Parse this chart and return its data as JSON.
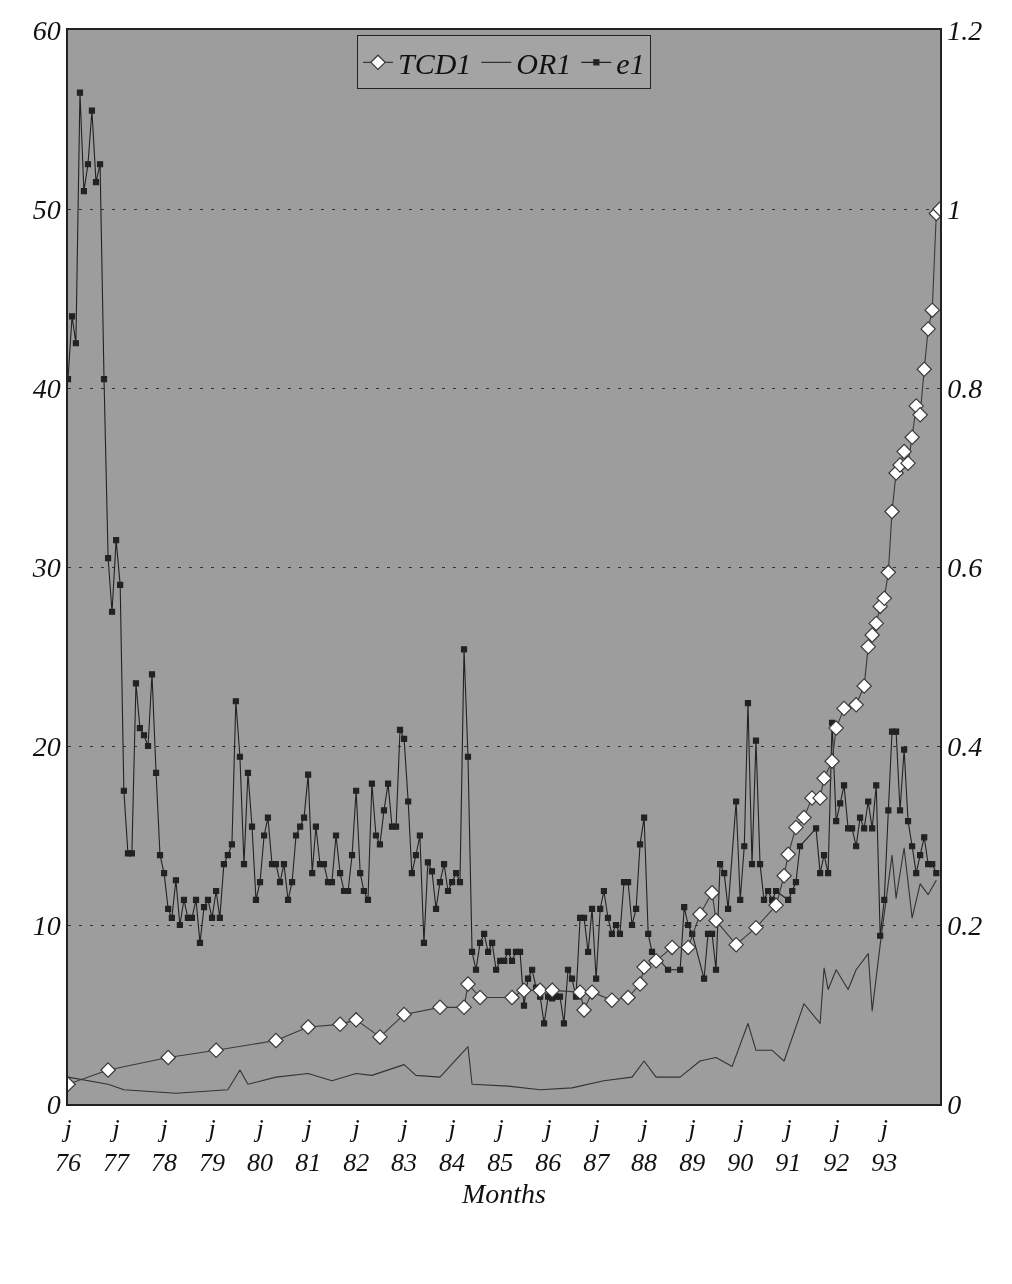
{
  "chart_data": {
    "type": "line",
    "xlabel": "Months",
    "xlim": [
      "1976-01",
      "1994-03"
    ],
    "xticks": [
      {
        "value": "1976-01",
        "label": "j\n76"
      },
      {
        "value": "1977-01",
        "label": "j\n77"
      },
      {
        "value": "1978-01",
        "label": "j\n78"
      },
      {
        "value": "1979-01",
        "label": "j\n79"
      },
      {
        "value": "1980-01",
        "label": "j\n80"
      },
      {
        "value": "1981-01",
        "label": "j\n81"
      },
      {
        "value": "1982-01",
        "label": "j\n82"
      },
      {
        "value": "1983-01",
        "label": "j\n83"
      },
      {
        "value": "1984-01",
        "label": "j\n84"
      },
      {
        "value": "1985-01",
        "label": "j\n85"
      },
      {
        "value": "1986-01",
        "label": "j\n86"
      },
      {
        "value": "1987-01",
        "label": "j\n87"
      },
      {
        "value": "1988-01",
        "label": "j\n88"
      },
      {
        "value": "1989-01",
        "label": "j\n89"
      },
      {
        "value": "1990-01",
        "label": "j\n90"
      },
      {
        "value": "1991-01",
        "label": "j\n91"
      },
      {
        "value": "1992-01",
        "label": "j\n92"
      },
      {
        "value": "1993-01",
        "label": "j\n93"
      }
    ],
    "ylim": [
      0,
      60
    ],
    "yticks": [
      0,
      10,
      20,
      30,
      40,
      50,
      60
    ],
    "y2lim": [
      0,
      1.2
    ],
    "y2ticks": [
      0,
      0.2,
      0.4,
      0.6,
      0.8,
      1,
      1.2
    ],
    "grid": "y",
    "legend": "top",
    "series": [
      {
        "name": "TCD1",
        "color": "#3a3a3a",
        "marker": "diamond",
        "axis": "y2",
        "x": [
          "1976-01",
          "1976-11",
          "1978-02",
          "1979-02",
          "1980-05",
          "1981-01",
          "1981-09",
          "1982-01",
          "1982-07",
          "1983-01",
          "1983-10",
          "1984-04",
          "1984-05",
          "1984-08",
          "1985-04",
          "1985-07",
          "1985-11",
          "1986-02",
          "1986-09",
          "1986-10",
          "1986-12",
          "1987-05",
          "1987-09",
          "1987-12",
          "1988-01",
          "1988-04",
          "1988-08",
          "1988-12",
          "1989-03",
          "1989-06",
          "1989-07",
          "1989-12",
          "1990-05",
          "1990-10",
          "1990-12",
          "1991-01",
          "1991-03",
          "1991-05",
          "1991-07",
          "1991-09",
          "1991-10",
          "1991-12",
          "1992-01",
          "1992-03",
          "1992-06",
          "1992-08",
          "1992-09",
          "1992-10",
          "1992-11",
          "1992-12",
          "1993-01",
          "1993-02",
          "1993-03",
          "1993-04",
          "1993-05",
          "1993-06",
          "1993-07",
          "1993-08",
          "1993-09",
          "1993-10",
          "1993-11",
          "1993-12",
          "1994-01",
          "1994-02",
          "1994-03"
        ],
        "values": [
          0.022,
          0.038,
          0.052,
          0.06,
          0.071,
          0.086,
          0.089,
          0.094,
          0.075,
          0.1,
          0.108,
          0.108,
          0.134,
          0.119,
          0.119,
          0.127,
          0.127,
          0.127,
          0.125,
          0.105,
          0.125,
          0.116,
          0.119,
          0.134,
          0.153,
          0.16,
          0.175,
          0.175,
          0.212,
          0.236,
          0.205,
          0.178,
          0.197,
          0.222,
          0.255,
          0.279,
          0.309,
          0.32,
          0.342,
          0.342,
          0.364,
          0.383,
          0.42,
          0.442,
          0.446,
          0.467,
          0.511,
          0.524,
          0.537,
          0.556,
          0.565,
          0.594,
          0.662,
          0.705,
          0.714,
          0.729,
          0.716,
          0.745,
          0.78,
          0.77,
          0.821,
          0.866,
          0.887,
          0.995,
          1.0
        ]
      },
      {
        "name": "OR1",
        "color": "#333333",
        "marker": "none",
        "x": [
          "1976-01",
          "1976-11",
          "1977-03",
          "1978-04",
          "1979-05",
          "1979-08",
          "1979-10",
          "1980-05",
          "1981-01",
          "1981-07",
          "1982-01",
          "1982-05",
          "1983-01",
          "1983-04",
          "1983-10",
          "1984-05",
          "1984-06",
          "1985-03",
          "1985-11",
          "1986-07",
          "1987-03",
          "1987-10",
          "1988-01",
          "1988-04",
          "1988-10",
          "1989-03",
          "1989-07",
          "1989-11",
          "1990-03",
          "1990-05",
          "1990-09",
          "1990-12",
          "1991-05",
          "1991-09",
          "1991-10",
          "1991-11",
          "1992-01",
          "1992-04",
          "1992-06",
          "1992-09",
          "1992-10",
          "1992-12",
          "1993-03",
          "1993-04",
          "1993-06",
          "1993-08",
          "1993-10",
          "1993-12",
          "1994-02"
        ],
        "values": [
          1.5,
          1.1,
          0.8,
          0.6,
          0.8,
          1.9,
          1.1,
          1.5,
          1.7,
          1.3,
          1.7,
          1.6,
          2.2,
          1.6,
          1.5,
          3.2,
          1.1,
          1.0,
          0.8,
          0.9,
          1.3,
          1.5,
          2.4,
          1.5,
          1.5,
          2.4,
          2.6,
          2.1,
          4.5,
          3.0,
          3.0,
          2.4,
          5.6,
          4.5,
          7.6,
          6.4,
          7.5,
          6.4,
          7.5,
          8.4,
          5.2,
          8.9,
          13.9,
          11.5,
          14.3,
          10.4,
          12.3,
          11.7,
          12.5
        ]
      },
      {
        "name": "e1",
        "color": "#222222",
        "marker": "square",
        "x": [
          "1976-01",
          "1976-02",
          "1976-03",
          "1976-04",
          "1976-05",
          "1976-06",
          "1976-07",
          "1976-08",
          "1976-09",
          "1976-10",
          "1976-11",
          "1976-12",
          "1977-01",
          "1977-02",
          "1977-03",
          "1977-04",
          "1977-05",
          "1977-06",
          "1977-07",
          "1977-08",
          "1977-09",
          "1977-10",
          "1977-11",
          "1977-12",
          "1978-01",
          "1978-02",
          "1978-03",
          "1978-04",
          "1978-05",
          "1978-06",
          "1978-07",
          "1978-08",
          "1978-09",
          "1978-10",
          "1978-11",
          "1978-12",
          "1979-01",
          "1979-02",
          "1979-03",
          "1979-04",
          "1979-05",
          "1979-06",
          "1979-07",
          "1979-08",
          "1979-09",
          "1979-10",
          "1979-11",
          "1979-12",
          "1980-01",
          "1980-02",
          "1980-03",
          "1980-04",
          "1980-05",
          "1980-06",
          "1980-07",
          "1980-08",
          "1980-09",
          "1980-10",
          "1980-11",
          "1980-12",
          "1981-01",
          "1981-02",
          "1981-03",
          "1981-04",
          "1981-05",
          "1981-06",
          "1981-07",
          "1981-08",
          "1981-09",
          "1981-10",
          "1981-11",
          "1981-12",
          "1982-01",
          "1982-02",
          "1982-03",
          "1982-04",
          "1982-05",
          "1982-06",
          "1982-07",
          "1982-08",
          "1982-09",
          "1982-10",
          "1982-11",
          "1982-12",
          "1983-01",
          "1983-02",
          "1983-03",
          "1983-04",
          "1983-05",
          "1983-06",
          "1983-07",
          "1983-08",
          "1983-09",
          "1983-10",
          "1983-11",
          "1983-12",
          "1984-01",
          "1984-02",
          "1984-03",
          "1984-04",
          "1984-05",
          "1984-06",
          "1984-07",
          "1984-08",
          "1984-09",
          "1984-10",
          "1984-11",
          "1984-12",
          "1985-01",
          "1985-02",
          "1985-03",
          "1985-04",
          "1985-05",
          "1985-06",
          "1985-07",
          "1985-08",
          "1985-09",
          "1985-10",
          "1985-11",
          "1985-12",
          "1986-01",
          "1986-02",
          "1986-03",
          "1986-04",
          "1986-05",
          "1986-06",
          "1986-07",
          "1986-08",
          "1986-09",
          "1986-10",
          "1986-11",
          "1986-12",
          "1987-01",
          "1987-02",
          "1987-03",
          "1987-04",
          "1987-05",
          "1987-06",
          "1987-07",
          "1987-08",
          "1987-09",
          "1987-10",
          "1987-11",
          "1987-12",
          "1988-01",
          "1988-02",
          "1988-03",
          "1988-07",
          "1988-10",
          "1988-11",
          "1988-12",
          "1989-01",
          "1989-04",
          "1989-05",
          "1989-06",
          "1989-07",
          "1989-08",
          "1989-09",
          "1989-10",
          "1989-12",
          "1990-01",
          "1990-02",
          "1990-03",
          "1990-04",
          "1990-05",
          "1990-06",
          "1990-07",
          "1990-08",
          "1990-09",
          "1990-10",
          "1991-01",
          "1991-02",
          "1991-03",
          "1991-04",
          "1991-08",
          "1991-09",
          "1991-10",
          "1991-11",
          "1991-12",
          "1992-01",
          "1992-02",
          "1992-03",
          "1992-04",
          "1992-05",
          "1992-06",
          "1992-07",
          "1992-08",
          "1992-09",
          "1992-10",
          "1992-11",
          "1992-12",
          "1993-01",
          "1993-02",
          "1993-03",
          "1993-04",
          "1993-05",
          "1993-06",
          "1993-07",
          "1993-08",
          "1993-09",
          "1993-10",
          "1993-11",
          "1993-12",
          "1994-01",
          "1994-02"
        ],
        "values": [
          40.5,
          44,
          42.5,
          56.5,
          51,
          52.5,
          55.5,
          51.5,
          52.5,
          40.5,
          30.5,
          27.5,
          31.5,
          29,
          17.5,
          14,
          14,
          23.5,
          21,
          20.6,
          20,
          24,
          18.5,
          13.9,
          12.9,
          10.9,
          10.4,
          12.5,
          10,
          11.4,
          10.4,
          10.4,
          11.4,
          9,
          11,
          11.4,
          10.4,
          11.9,
          10.4,
          13.4,
          13.9,
          14.5,
          22.5,
          19.4,
          13.4,
          18.5,
          15.5,
          11.4,
          12.4,
          15,
          16,
          13.4,
          13.4,
          12.4,
          13.4,
          11.4,
          12.4,
          15,
          15.5,
          16,
          18.4,
          12.9,
          15.5,
          13.4,
          13.4,
          12.4,
          12.4,
          15,
          12.9,
          11.9,
          11.9,
          13.9,
          17.5,
          12.9,
          11.9,
          11.4,
          17.9,
          15,
          14.5,
          16.4,
          17.9,
          15.5,
          15.5,
          20.9,
          20.4,
          16.9,
          12.9,
          13.9,
          15,
          9,
          13.5,
          13,
          10.9,
          12.4,
          13.4,
          11.9,
          12.4,
          12.9,
          12.4,
          25.4,
          19.4,
          8.5,
          7.5,
          9,
          9.5,
          8.5,
          9,
          7.5,
          8,
          8,
          8.5,
          8,
          8.5,
          8.5,
          5.5,
          7,
          7.5,
          6.5,
          6,
          4.5,
          6,
          5.9,
          6,
          6,
          4.5,
          7.5,
          7,
          6,
          10.4,
          10.4,
          8.5,
          10.9,
          7,
          10.9,
          11.9,
          10.4,
          9.5,
          10,
          9.5,
          12.4,
          12.4,
          10,
          10.9,
          14.5,
          16,
          9.5,
          8.5,
          7.5,
          7.5,
          11,
          10,
          9.5,
          7,
          9.5,
          9.5,
          7.5,
          13.4,
          12.9,
          10.9,
          16.9,
          11.4,
          14.4,
          22.4,
          13.4,
          20.3,
          13.4,
          11.4,
          11.9,
          11.4,
          11.9,
          11.4,
          11.9,
          12.4,
          14.4,
          15.4,
          12.9,
          13.9,
          12.9,
          21.3,
          15.8,
          16.8,
          17.8,
          15.4,
          15.4,
          14.4,
          16,
          15.4,
          16.9,
          15.4,
          17.8,
          9.4,
          11.4,
          16.4,
          20.8,
          20.8,
          16.4,
          19.8,
          15.8,
          14.4,
          12.9,
          13.9,
          14.9,
          13.4,
          13.4,
          12.9
        ]
      }
    ]
  }
}
